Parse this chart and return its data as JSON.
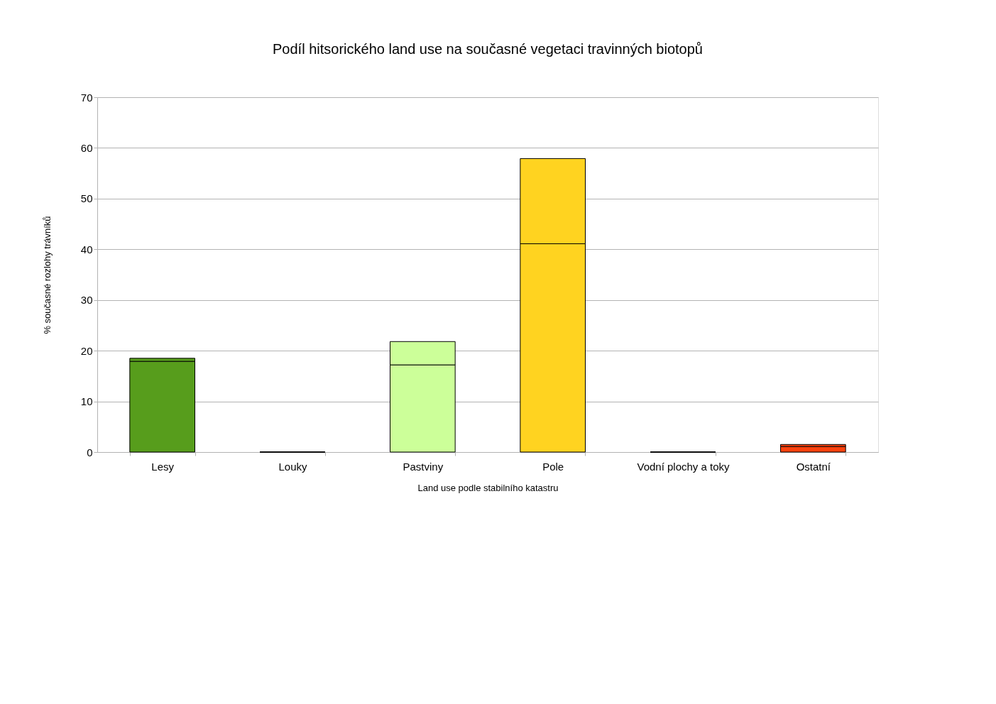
{
  "chart_data": {
    "type": "bar",
    "title": "Podíl hitsorického land use na současné vegetaci travinných biotopů",
    "xlabel": "Land use podle stabilního katastru",
    "ylabel": "% současné rozlohy trávníků",
    "categories": [
      "Lesy",
      "Louky",
      "Pastviny",
      "Pole",
      "Vodní plochy a toky",
      "Ostatní"
    ],
    "stacked": true,
    "series": [
      {
        "colors": [
          "#579d1c",
          "#000000",
          "#ccff99",
          "#ffd320",
          "#000000",
          "#ff420e"
        ],
        "values": [
          17.9,
          0,
          17.2,
          41.1,
          0,
          1.1
        ]
      },
      {
        "colors": [
          "#579d1c",
          "#000000",
          "#ccff99",
          "#ffd320",
          "#000000",
          "#ff420e"
        ],
        "values": [
          0.6,
          0,
          4.6,
          16.8,
          0,
          0.4
        ]
      }
    ],
    "ylim": [
      0,
      70
    ],
    "yticks": [
      0,
      10,
      20,
      30,
      40,
      50,
      60,
      70
    ],
    "grid": "y"
  }
}
